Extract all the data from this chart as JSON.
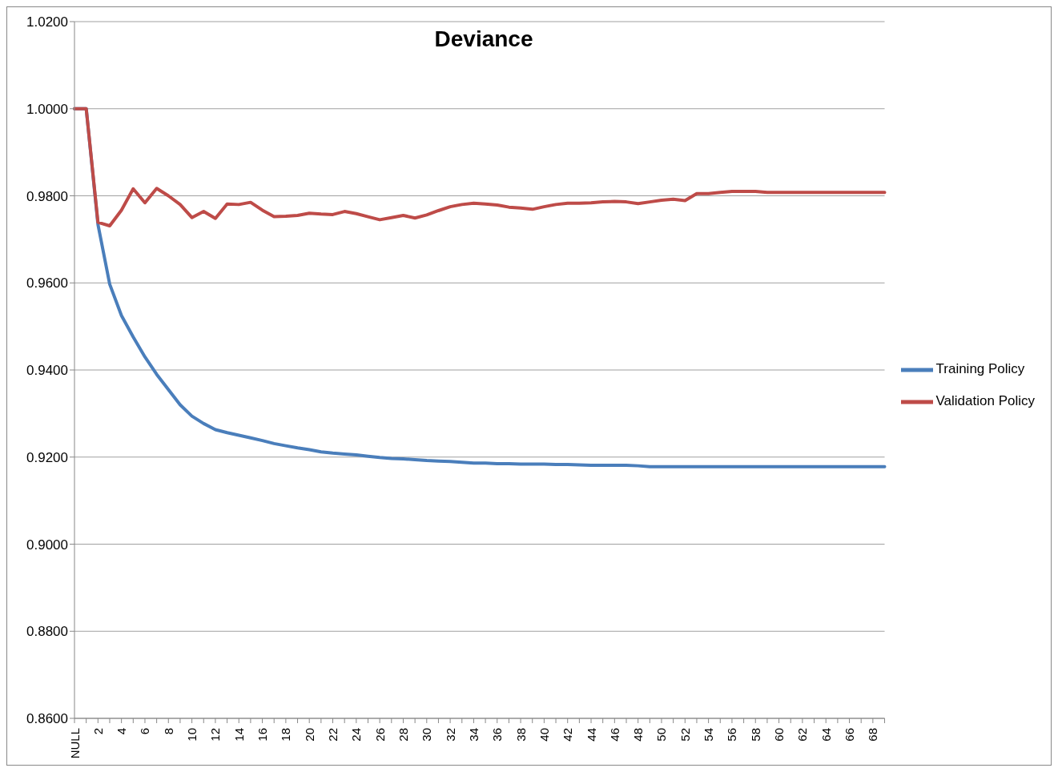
{
  "chart_data": {
    "type": "line",
    "title": "Deviance",
    "categories": [
      "NULL",
      null,
      "2",
      null,
      "4",
      null,
      "6",
      null,
      "8",
      null,
      "10",
      null,
      "12",
      null,
      "14",
      null,
      "16",
      null,
      "18",
      null,
      "20",
      null,
      "22",
      null,
      "24",
      null,
      "26",
      null,
      "28",
      null,
      "30",
      null,
      "32",
      null,
      "34",
      null,
      "36",
      null,
      "38",
      null,
      "40",
      null,
      "42",
      null,
      "44",
      null,
      "46",
      null,
      "48",
      null,
      "50",
      null,
      "52",
      null,
      "54",
      null,
      "56",
      null,
      "58",
      null,
      "60",
      null,
      "62",
      null,
      "64",
      null,
      "66",
      null,
      "68",
      null
    ],
    "series": [
      {
        "name": "Training Policy",
        "color": "#4a7ebb",
        "values": [
          1.0,
          1.0,
          0.9734,
          0.9597,
          0.9525,
          0.9476,
          0.943,
          0.939,
          0.9355,
          0.932,
          0.9294,
          0.9277,
          0.9263,
          0.9256,
          0.925,
          0.9244,
          0.9238,
          0.9231,
          0.9226,
          0.9221,
          0.9217,
          0.9212,
          0.9209,
          0.9207,
          0.9205,
          0.9202,
          0.9199,
          0.9197,
          0.9196,
          0.9194,
          0.9192,
          0.9191,
          0.919,
          0.9188,
          0.9186,
          0.9186,
          0.9185,
          0.9185,
          0.9184,
          0.9184,
          0.9184,
          0.9183,
          0.9183,
          0.9182,
          0.9181,
          0.9181,
          0.9181,
          0.9181,
          0.918,
          0.9178,
          0.9178,
          0.9178,
          0.9178,
          0.9178,
          0.9178,
          0.9178,
          0.9178,
          0.9178,
          0.9178,
          0.9178,
          0.9178,
          0.9178,
          0.9178,
          0.9178,
          0.9178,
          0.9178,
          0.9178,
          0.9178,
          0.9178,
          0.9178
        ]
      },
      {
        "name": "Validation Policy",
        "color": "#be4b48",
        "values": [
          1.0,
          1.0,
          0.9739,
          0.9731,
          0.9767,
          0.9816,
          0.9784,
          0.9817,
          0.98,
          0.978,
          0.975,
          0.9764,
          0.9748,
          0.9781,
          0.978,
          0.9785,
          0.9767,
          0.9752,
          0.9753,
          0.9755,
          0.976,
          0.9758,
          0.9757,
          0.9764,
          0.9759,
          0.9752,
          0.9745,
          0.975,
          0.9755,
          0.9749,
          0.9756,
          0.9766,
          0.9775,
          0.978,
          0.9783,
          0.9781,
          0.9779,
          0.9774,
          0.9772,
          0.9769,
          0.9775,
          0.978,
          0.9783,
          0.9783,
          0.9784,
          0.9786,
          0.9787,
          0.9786,
          0.9782,
          0.9786,
          0.979,
          0.9792,
          0.9789,
          0.9805,
          0.9805,
          0.9808,
          0.981,
          0.981,
          0.981,
          0.9808,
          0.9808,
          0.9808,
          0.9808,
          0.9808,
          0.9808,
          0.9808,
          0.9808,
          0.9808,
          0.9808,
          0.9808
        ]
      }
    ],
    "ylim": [
      0.86,
      1.02
    ],
    "yticks": [
      {
        "value": 0.86,
        "label": "0.8600"
      },
      {
        "value": 0.88,
        "label": "0.8800"
      },
      {
        "value": 0.9,
        "label": "0.9000"
      },
      {
        "value": 0.92,
        "label": "0.9200"
      },
      {
        "value": 0.94,
        "label": "0.9400"
      },
      {
        "value": 0.96,
        "label": "0.9600"
      },
      {
        "value": 0.98,
        "label": "0.9800"
      },
      {
        "value": 1.0,
        "label": "1.0000"
      },
      {
        "value": 1.02,
        "label": "1.0200"
      }
    ],
    "grid": "y",
    "legend": "right"
  }
}
